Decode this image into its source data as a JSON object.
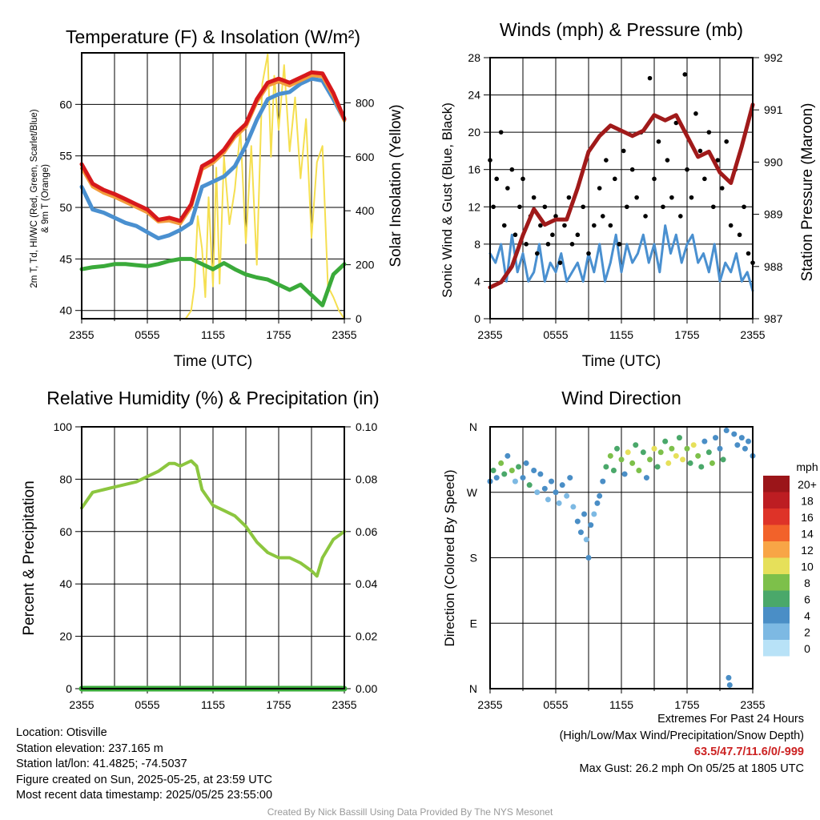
{
  "colors": {
    "red": "#d7191c",
    "orange": "#f39c3c",
    "blue": "#4a90d0",
    "green": "#3aaa3a",
    "yellow": "#f5df50",
    "maroon": "#a01a1a",
    "rh": "#8cc63f",
    "precip": "#3aaa3a"
  },
  "x_tick_labels": [
    "2355",
    "0555",
    "1155",
    "1755",
    "2355"
  ],
  "chart_data": [
    {
      "type": "line",
      "title": "Temperature (F) & Insolation (W/m²)",
      "xlabel": "Time (UTC)",
      "ylabel": "2m T, Td, HI/WC (Red, Green, Scarlet/Blue) & 9m T (Orange)",
      "ylabel2": "Solar Insolation (Yellow)",
      "ylim": [
        39.2,
        65
      ],
      "ylim2": [
        0,
        985
      ],
      "yticks": [
        40,
        45,
        50,
        55,
        60
      ],
      "yticks2": [
        0,
        200,
        400,
        600,
        800
      ],
      "x_hours": [
        0,
        1,
        2,
        3,
        4,
        5,
        6,
        7,
        8,
        9,
        10,
        11,
        12,
        13,
        14,
        15,
        16,
        17,
        18,
        19,
        20,
        21,
        22,
        23,
        24
      ],
      "series": [
        {
          "name": "Td",
          "color": "green",
          "values": [
            44,
            44.2,
            44.3,
            44.5,
            44.5,
            44.4,
            44.3,
            44.5,
            44.8,
            45,
            45,
            44.5,
            44,
            44.6,
            44,
            43.5,
            43.2,
            43,
            42.5,
            42,
            42.5,
            41.5,
            40.5,
            43.5,
            44.5
          ]
        },
        {
          "name": "WC",
          "color": "blue",
          "values": [
            52,
            49.8,
            49.5,
            49,
            48.5,
            48.2,
            47.6,
            47,
            47.3,
            47.8,
            48.5,
            52,
            52.5,
            53,
            54,
            56,
            58.5,
            60.5,
            61,
            61.2,
            62,
            62.5,
            62.3,
            60.5,
            58.5
          ]
        },
        {
          "name": "9m T",
          "color": "orange",
          "values": [
            53.8,
            52,
            51.4,
            51,
            50.5,
            50,
            49.5,
            48.6,
            48.7,
            48.4,
            50,
            53.7,
            54.3,
            55.3,
            56.8,
            57.8,
            60.2,
            61.8,
            62.2,
            61.8,
            62.3,
            62.8,
            62.7,
            60.8,
            58.4
          ]
        },
        {
          "name": "2m T",
          "color": "red",
          "values": [
            54.2,
            52.3,
            51.7,
            51.3,
            50.8,
            50.3,
            49.8,
            48.8,
            49,
            48.7,
            50.3,
            54,
            54.6,
            55.6,
            57.1,
            58.1,
            60.5,
            62.1,
            62.5,
            62.1,
            62.6,
            63.1,
            63,
            61.1,
            58.6
          ]
        }
      ],
      "solar": {
        "x": [
          0,
          9.5,
          10,
          10.3,
          10.6,
          11,
          11.3,
          11.6,
          12,
          12.3,
          12.6,
          13,
          13.5,
          14,
          14.5,
          15,
          15.5,
          16,
          16.5,
          17,
          17.3,
          17.6,
          18,
          18.5,
          19,
          19.5,
          20,
          20.5,
          21,
          21.5,
          22,
          22.5,
          23,
          23.5,
          24
        ],
        "y": [
          0,
          0,
          30,
          120,
          380,
          260,
          80,
          450,
          120,
          560,
          130,
          600,
          350,
          480,
          700,
          280,
          640,
          200,
          870,
          980,
          600,
          900,
          700,
          940,
          620,
          820,
          520,
          740,
          300,
          580,
          640,
          120,
          80,
          30,
          0
        ]
      }
    },
    {
      "type": "line",
      "title": "Winds (mph) & Pressure (mb)",
      "xlabel": "Time (UTC)",
      "ylabel": "Sonic Wind & Gust (Blue, Black)",
      "ylabel2": "Station Pressure (Maroon)",
      "ylim": [
        0,
        28
      ],
      "ylim2": [
        987,
        992
      ],
      "yticks": [
        0,
        4,
        8,
        12,
        16,
        20,
        24,
        28
      ],
      "yticks2": [
        987,
        988,
        989,
        990,
        991,
        992
      ],
      "wind": {
        "x": [
          0,
          0.5,
          1,
          1.5,
          2,
          2.5,
          3,
          3.5,
          4,
          4.5,
          5,
          5.5,
          6,
          6.5,
          7,
          7.5,
          8,
          8.5,
          9,
          9.5,
          10,
          10.5,
          11,
          11.5,
          12,
          12.5,
          13,
          13.5,
          14,
          14.5,
          15,
          15.5,
          16,
          16.5,
          17,
          17.5,
          18,
          18.5,
          19,
          19.5,
          20,
          20.5,
          21,
          21.5,
          22,
          22.5,
          23,
          23.5,
          24
        ],
        "y": [
          7,
          6,
          8,
          4,
          9,
          5,
          7,
          4,
          5,
          8,
          4,
          6,
          5,
          7,
          4,
          5,
          6,
          4,
          7,
          5,
          8,
          4,
          6,
          9,
          5,
          8,
          6,
          7,
          9,
          6,
          8,
          5,
          10,
          7,
          9,
          6,
          8,
          9,
          6,
          7,
          5,
          8,
          4,
          6,
          5,
          7,
          4,
          5,
          3
        ]
      },
      "gust": {
        "x": [
          0,
          0.3,
          0.6,
          1,
          1.3,
          1.6,
          2,
          2.3,
          2.7,
          3,
          3.3,
          3.7,
          4,
          4.3,
          4.6,
          5,
          5.3,
          5.7,
          6,
          6.4,
          6.8,
          7.2,
          7.5,
          8,
          8.5,
          9,
          9.5,
          10,
          10.3,
          10.6,
          11,
          11.4,
          11.8,
          12.2,
          12.5,
          13,
          13.4,
          13.8,
          14.2,
          14.6,
          15,
          15.4,
          15.8,
          16.2,
          16.6,
          17,
          17.4,
          17.8,
          18,
          18.4,
          18.8,
          19.2,
          19.6,
          20,
          20.4,
          20.8,
          21.2,
          21.6,
          22,
          22.4,
          22.8,
          23.2,
          23.6,
          24
        ],
        "y": [
          17,
          12,
          15,
          20,
          10,
          14,
          16,
          9,
          12,
          15,
          8,
          11,
          13,
          7,
          10,
          12,
          8,
          9,
          11,
          6,
          10,
          13,
          8,
          9,
          12,
          7,
          10,
          14,
          11,
          17,
          10,
          15,
          8,
          18,
          12,
          16,
          13,
          20,
          11,
          25.8,
          15,
          19,
          12,
          17,
          13,
          21,
          11,
          26.2,
          16,
          13,
          22,
          18,
          15,
          20,
          12,
          17,
          14,
          19,
          10,
          16,
          9,
          12,
          7,
          6
        ]
      },
      "pressure": {
        "x": [
          0,
          1,
          2,
          3,
          4,
          5,
          6,
          7,
          8,
          9,
          10,
          11,
          12,
          13,
          14,
          15,
          16,
          17,
          18,
          19,
          20,
          21,
          22,
          23,
          24
        ],
        "y": [
          987.6,
          987.7,
          988,
          988.6,
          989.1,
          988.8,
          988.9,
          988.9,
          989.5,
          990.2,
          990.5,
          990.7,
          990.6,
          990.5,
          990.6,
          990.9,
          990.8,
          990.9,
          990.5,
          990.1,
          990.2,
          989.8,
          989.6,
          990.3,
          991.1
        ]
      }
    },
    {
      "type": "line",
      "title": "Relative Humidity (%) & Precipitation (in)",
      "ylabel": "Percent & Precipitation",
      "ylim": [
        0,
        100
      ],
      "ylim2": [
        0,
        0.1
      ],
      "yticks": [
        0,
        20,
        40,
        60,
        80,
        100
      ],
      "yticks2": [
        "0.00",
        "0.02",
        "0.04",
        "0.06",
        "0.08",
        "0.10"
      ],
      "rh": {
        "x": [
          0,
          1,
          2,
          3,
          4,
          5,
          6,
          7,
          8,
          8.5,
          9,
          10,
          10.5,
          11,
          12,
          13,
          14,
          15,
          16,
          17,
          18,
          19,
          20,
          21,
          21.5,
          22,
          23,
          24
        ],
        "y": [
          69,
          75,
          76,
          77,
          78,
          79,
          81,
          83,
          86,
          86,
          85,
          87,
          85,
          76,
          70,
          68,
          66,
          62,
          56,
          52,
          50,
          50,
          48,
          45,
          43,
          50,
          57,
          60
        ]
      },
      "precip": {
        "x": [
          0,
          24
        ],
        "y": [
          0,
          0
        ]
      }
    },
    {
      "type": "scatter",
      "title": "Wind Direction",
      "ylabel": "Direction (Colored By Speed)",
      "ylim": [
        0,
        360
      ],
      "yticks": [
        "N",
        "E",
        "S",
        "W",
        "N"
      ],
      "legend_title": "mph",
      "legend": [
        "20+",
        "18",
        "16",
        "14",
        "12",
        "10",
        "8",
        "6",
        "4",
        "2",
        "0"
      ],
      "legend_colors": [
        "#9b1519",
        "#bd1d22",
        "#de3328",
        "#f2622a",
        "#f8a546",
        "#e6e05a",
        "#7dc04a",
        "#4aa86a",
        "#4a8ec6",
        "#7db9e3",
        "#b8e2f7"
      ],
      "points": [
        [
          0,
          285,
          4
        ],
        [
          0.3,
          300,
          6
        ],
        [
          0.6,
          290,
          4
        ],
        [
          1,
          310,
          8
        ],
        [
          1.3,
          295,
          6
        ],
        [
          1.6,
          320,
          4
        ],
        [
          2,
          300,
          8
        ],
        [
          2.3,
          285,
          2
        ],
        [
          2.6,
          305,
          6
        ],
        [
          3,
          290,
          4
        ],
        [
          3.3,
          310,
          4
        ],
        [
          3.6,
          280,
          6
        ],
        [
          4,
          300,
          4
        ],
        [
          4.3,
          270,
          2
        ],
        [
          4.6,
          295,
          4
        ],
        [
          5,
          275,
          4
        ],
        [
          5.3,
          260,
          2
        ],
        [
          5.6,
          285,
          4
        ],
        [
          6,
          270,
          4
        ],
        [
          6.3,
          255,
          2
        ],
        [
          6.6,
          280,
          4
        ],
        [
          7,
          265,
          2
        ],
        [
          7.3,
          290,
          4
        ],
        [
          7.6,
          250,
          2
        ],
        [
          8,
          230,
          4
        ],
        [
          8.3,
          215,
          4
        ],
        [
          8.6,
          240,
          4
        ],
        [
          8.8,
          205,
          2
        ],
        [
          9,
          180,
          4
        ],
        [
          9.2,
          225,
          4
        ],
        [
          9.5,
          240,
          2
        ],
        [
          9.8,
          255,
          4
        ],
        [
          10,
          265,
          4
        ],
        [
          10.3,
          285,
          4
        ],
        [
          10.6,
          305,
          6
        ],
        [
          11,
          320,
          8
        ],
        [
          11.3,
          300,
          6
        ],
        [
          11.6,
          330,
          6
        ],
        [
          12,
          315,
          8
        ],
        [
          12.3,
          295,
          4
        ],
        [
          12.6,
          325,
          10
        ],
        [
          13,
          310,
          8
        ],
        [
          13.3,
          335,
          6
        ],
        [
          13.6,
          300,
          8
        ],
        [
          14,
          325,
          6
        ],
        [
          14.3,
          290,
          4
        ],
        [
          14.6,
          315,
          8
        ],
        [
          15,
          330,
          10
        ],
        [
          15.3,
          305,
          6
        ],
        [
          15.6,
          325,
          8
        ],
        [
          16,
          340,
          6
        ],
        [
          16.3,
          310,
          10
        ],
        [
          16.6,
          330,
          8
        ],
        [
          17,
          320,
          10
        ],
        [
          17.3,
          345,
          6
        ],
        [
          17.6,
          315,
          10
        ],
        [
          18,
          330,
          8
        ],
        [
          18.3,
          310,
          6
        ],
        [
          18.6,
          335,
          10
        ],
        [
          19,
          320,
          8
        ],
        [
          19.3,
          305,
          6
        ],
        [
          19.6,
          340,
          4
        ],
        [
          20,
          325,
          6
        ],
        [
          20.3,
          310,
          8
        ],
        [
          20.6,
          345,
          4
        ],
        [
          21,
          330,
          4
        ],
        [
          21.3,
          315,
          6
        ],
        [
          21.6,
          355,
          4
        ],
        [
          21.8,
          15,
          4
        ],
        [
          21.9,
          5,
          4
        ],
        [
          22.3,
          350,
          4
        ],
        [
          22.6,
          335,
          4
        ],
        [
          23,
          345,
          4
        ],
        [
          23.3,
          330,
          4
        ],
        [
          23.6,
          340,
          4
        ],
        [
          24,
          320,
          4
        ]
      ]
    }
  ],
  "info": {
    "location": "Location: Otisville",
    "elevation": "Station elevation: 237.165 m",
    "latlon": "Station lat/lon: 41.4825; -74.5037",
    "created": "Figure created on Sun, 2025-05-25, at 23:59 UTC",
    "recent": "Most recent data timestamp: 2025/05/25 23:55:00"
  },
  "extremes": {
    "title": "Extremes For Past 24 Hours",
    "subtitle": "(High/Low/Max Wind/Precipitation/Snow Depth)",
    "values": "63.5/47.7/11.6/0/-999",
    "gust": "Max Gust: 26.2 mph On 05/25 at 1805 UTC"
  },
  "footer": "Created By Nick Bassill Using Data Provided By The NYS Mesonet"
}
